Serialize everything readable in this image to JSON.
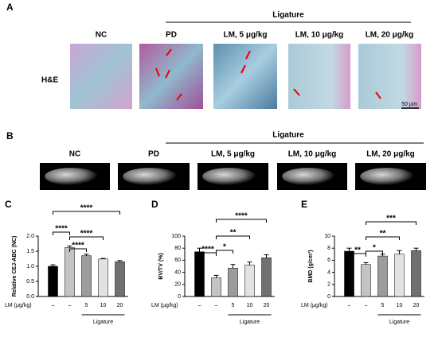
{
  "panel_a": {
    "letter": "A",
    "group_label": "Ligature",
    "row_label": "H&E",
    "scale_bar": "50 μm",
    "columns": [
      "NC",
      "PD",
      "LM, 5 μg/kg",
      "LM, 10 μg/kg",
      "LM, 20 μg/kg"
    ]
  },
  "panel_b": {
    "letter": "B",
    "group_label": "Ligature",
    "columns": [
      "NC",
      "PD",
      "LM, 5 μg/kg",
      "LM, 10 μg/kg",
      "LM, 20 μg/kg"
    ]
  },
  "chart_data": [
    {
      "type": "bar",
      "letter": "C",
      "y_label": "Relative CEJ-ABC (NC)",
      "x_row_label": "LM (μg/kg)",
      "group_label": "Ligature",
      "categories": [
        "–",
        "–",
        "5",
        "10",
        "20"
      ],
      "values": [
        1.0,
        1.62,
        1.35,
        1.24,
        1.15
      ],
      "errors": [
        0.05,
        0.05,
        0.05,
        0.02,
        0.04
      ],
      "colors": [
        "#000000",
        "#c4c4c4",
        "#9c9c9c",
        "#e2e2e2",
        "#707070"
      ],
      "ylim": [
        0,
        2.0
      ],
      "yticks": [
        {
          "value": 0,
          "label": "0.0"
        },
        {
          "value": 0.5,
          "label": "0.5"
        },
        {
          "value": 1.0,
          "label": "1.0"
        },
        {
          "value": 1.5,
          "label": "1.5"
        },
        {
          "value": 2.0,
          "label": "2.0"
        }
      ],
      "significance": [
        "****",
        "****",
        "****",
        "****"
      ]
    },
    {
      "type": "bar",
      "letter": "D",
      "y_label": "BV/TV (%)",
      "x_row_label": "LM (μg/kg)",
      "group_label": "Ligature",
      "categories": [
        "–",
        "–",
        "5",
        "10",
        "20"
      ],
      "values": [
        74,
        31,
        47,
        52,
        64
      ],
      "errors": [
        6,
        4,
        6,
        5,
        5
      ],
      "colors": [
        "#000000",
        "#c4c4c4",
        "#9c9c9c",
        "#e2e2e2",
        "#707070"
      ],
      "ylim": [
        0,
        100
      ],
      "yticks": [
        0,
        20,
        40,
        60,
        80,
        100
      ],
      "significance": [
        "****",
        "*",
        "**",
        "****"
      ]
    },
    {
      "type": "bar",
      "letter": "E",
      "y_label": "BMD (g/cm³)",
      "x_row_label": "LM (μg/kg)",
      "group_label": "Ligature",
      "categories": [
        "–",
        "–",
        "5",
        "10",
        "20"
      ],
      "values": [
        7.5,
        5.3,
        6.7,
        7.0,
        7.6
      ],
      "errors": [
        0.5,
        0.3,
        0.3,
        0.6,
        0.4
      ],
      "colors": [
        "#000000",
        "#c4c4c4",
        "#9c9c9c",
        "#e2e2e2",
        "#707070"
      ],
      "ylim": [
        0,
        10
      ],
      "yticks": [
        0,
        2,
        4,
        6,
        8,
        10
      ],
      "significance": [
        "**",
        "*",
        "**",
        "***"
      ]
    }
  ]
}
